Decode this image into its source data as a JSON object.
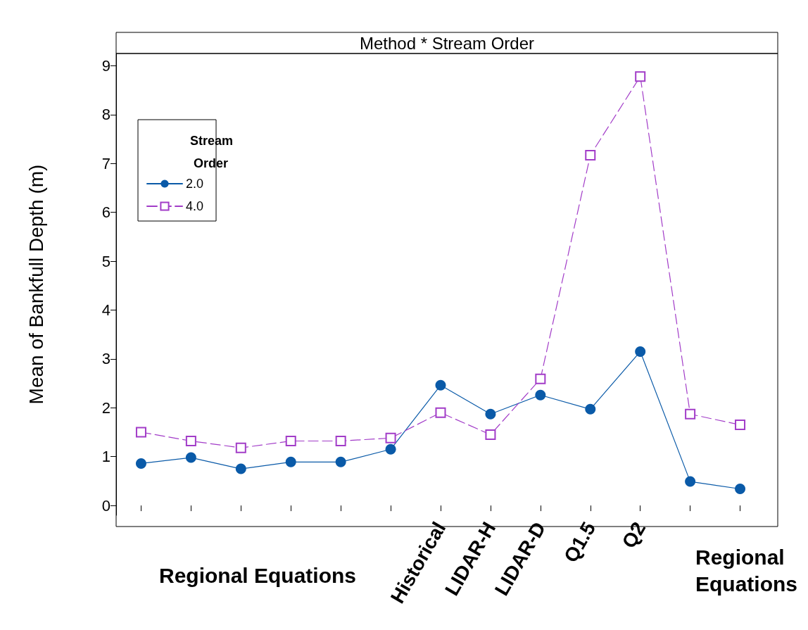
{
  "chart_data": {
    "type": "line",
    "title": "Method * Stream Order",
    "ylabel": "Mean of Bankfull Depth (m)",
    "legend_title": "Stream Order",
    "legend": "top left",
    "grid": false,
    "categories": [
      null,
      null,
      null,
      null,
      null,
      null,
      "Historical",
      "LIDAR-H",
      "LIDAR-D",
      "Q1.5",
      "Q2",
      null,
      null
    ],
    "annotations": [
      "Regional Equations",
      "Regional Equations"
    ],
    "ylim": [
      -0.2,
      9.25
    ],
    "yticks": [
      0,
      1,
      2,
      3,
      4,
      5,
      6,
      7,
      8,
      9
    ],
    "series": [
      {
        "name": "2.0",
        "color": "#0a5aa8",
        "marker": "circle",
        "line_style": "solid",
        "values": [
          0.86,
          0.98,
          0.75,
          0.89,
          0.89,
          1.15,
          2.46,
          1.87,
          2.26,
          1.97,
          3.15,
          0.49,
          0.34
        ]
      },
      {
        "name": "4.0",
        "color": "#a23cc8",
        "marker": "square",
        "line_style": "dashed",
        "values": [
          1.5,
          1.32,
          1.18,
          1.32,
          1.32,
          1.38,
          1.9,
          1.45,
          2.59,
          7.17,
          8.78,
          1.87,
          1.65
        ]
      }
    ]
  }
}
